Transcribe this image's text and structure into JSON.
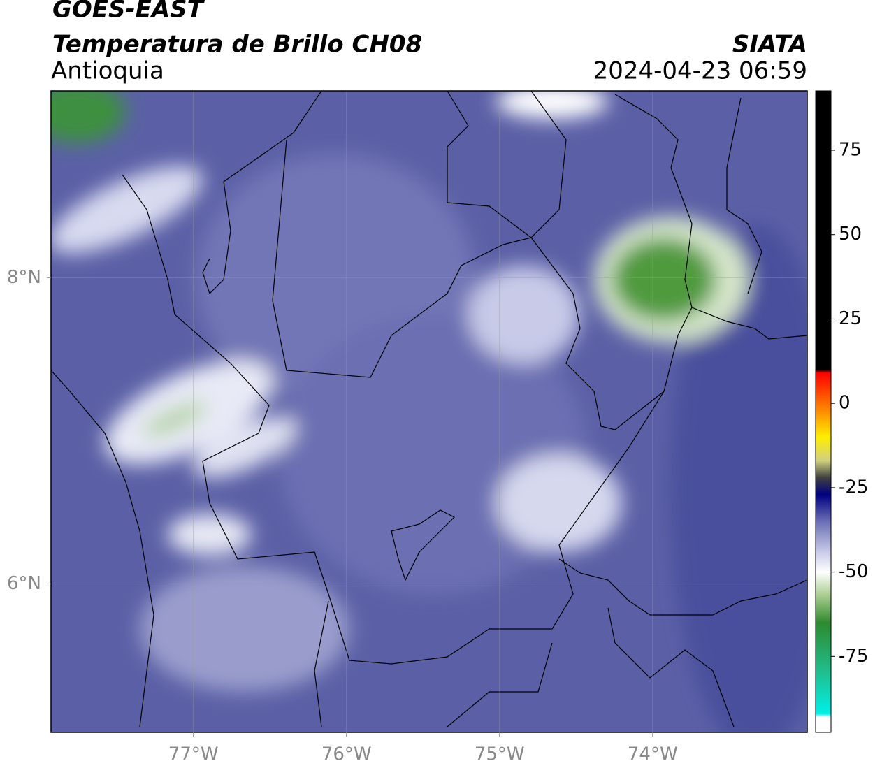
{
  "header": {
    "title": "GOES-EAST",
    "product": "Temperatura de Brillo CH08",
    "region": "Antioquia",
    "source": "SIATA",
    "datetime": "2024-04-23 06:59"
  },
  "map": {
    "xlim": [
      -77.93,
      -72.99
    ],
    "ylim": [
      5.03,
      9.22
    ],
    "xticks": [
      {
        "value": -77,
        "label": "77°W"
      },
      {
        "value": -76,
        "label": "76°W"
      },
      {
        "value": -75,
        "label": "75°W"
      },
      {
        "value": -74,
        "label": "74°W"
      }
    ],
    "yticks": [
      {
        "value": 6,
        "label": "6°N"
      },
      {
        "value": 8,
        "label": "8°N"
      }
    ],
    "grid": true
  },
  "colorbar": {
    "lim": [
      -97.5,
      92.6
    ],
    "ticks": [
      75,
      50,
      25,
      0,
      -25,
      -50,
      -75
    ],
    "stops": [
      [
        92.6,
        "#000000"
      ],
      [
        10,
        "#000000"
      ],
      [
        9,
        "#ff0000"
      ],
      [
        -2,
        "#ff8800"
      ],
      [
        -10,
        "#ffee00"
      ],
      [
        -17,
        "#d0d080"
      ],
      [
        -22,
        "#404040"
      ],
      [
        -27,
        "#000080"
      ],
      [
        -35,
        "#6a6fb5"
      ],
      [
        -44,
        "#c8cae8"
      ],
      [
        -50,
        "#ffffff"
      ],
      [
        -57,
        "#a8cc90"
      ],
      [
        -65,
        "#2e8a2e"
      ],
      [
        -80,
        "#1fc090"
      ],
      [
        -92,
        "#00f0e8"
      ],
      [
        -93,
        "#ffffff"
      ],
      [
        -97.5,
        "#ffffff"
      ]
    ]
  }
}
